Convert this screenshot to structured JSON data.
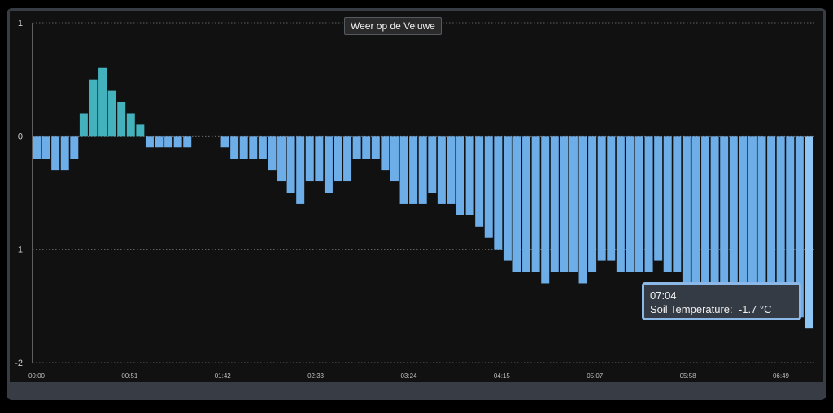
{
  "chart_data": {
    "type": "bar",
    "title": "Weer op de Veluwe",
    "ylim": [
      -2,
      1
    ],
    "yticks": [
      1,
      0,
      -1,
      -2
    ],
    "ytick_labels": [
      "1",
      "0",
      "-1",
      "-2"
    ],
    "xtick_labels": [
      "00:00",
      "00:51",
      "01:42",
      "02:33",
      "03:24",
      "04:15",
      "05:07",
      "05:58",
      "06:49"
    ],
    "grid": true,
    "series": [
      {
        "name": "Soil Temperature",
        "unit": "°C",
        "values": [
          -0.2,
          -0.2,
          -0.3,
          -0.3,
          -0.2,
          0.2,
          0.5,
          0.6,
          0.4,
          0.3,
          0.2,
          0.1,
          -0.1,
          -0.1,
          -0.1,
          -0.1,
          -0.1,
          0,
          0,
          0,
          -0.1,
          -0.2,
          -0.2,
          -0.2,
          -0.2,
          -0.3,
          -0.4,
          -0.5,
          -0.6,
          -0.4,
          -0.4,
          -0.5,
          -0.4,
          -0.4,
          -0.2,
          -0.2,
          -0.2,
          -0.3,
          -0.4,
          -0.6,
          -0.6,
          -0.6,
          -0.5,
          -0.6,
          -0.6,
          -0.7,
          -0.7,
          -0.8,
          -0.9,
          -1.0,
          -1.1,
          -1.2,
          -1.2,
          -1.2,
          -1.3,
          -1.2,
          -1.2,
          -1.2,
          -1.3,
          -1.2,
          -1.1,
          -1.1,
          -1.2,
          -1.2,
          -1.2,
          -1.2,
          -1.1,
          -1.2,
          -1.2,
          -1.3,
          -1.3,
          -1.3,
          -1.3,
          -1.4,
          -1.4,
          -1.4,
          -1.5,
          -1.5,
          -1.5,
          -1.5,
          -1.6,
          -1.6,
          -1.7
        ]
      }
    ]
  },
  "tooltip": {
    "time": "07:04",
    "series_label": "Soil Temperature:",
    "value_text": "-1.7 °C"
  },
  "colors": {
    "negative": "#6eaee8",
    "positive": "#43b2bd",
    "highlight": "#8ec6f5",
    "grid": "#7d7d7d",
    "axis": "#aaaaaa"
  }
}
